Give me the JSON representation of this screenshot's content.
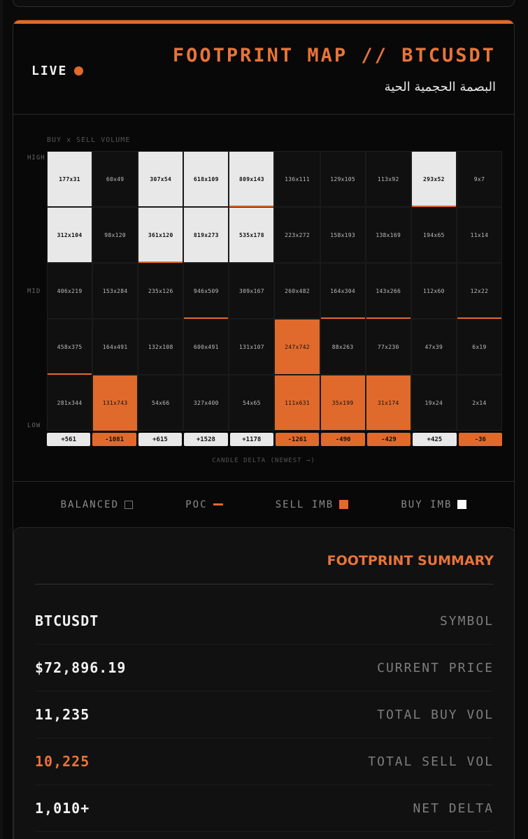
{
  "header": {
    "live_label": "LIVE",
    "title": "FOOTPRINT MAP // BTCUSDT",
    "subtitle": "البصمة الحجمية الحية"
  },
  "chart": {
    "caption": "BUY x SELL VOLUME",
    "y_labels": {
      "high": "HIGH",
      "mid": "MID",
      "low": "LOW"
    },
    "x_caption": "CANDLE DELTA (NEWEST →)"
  },
  "chart_data": {
    "type": "heatmap",
    "rows": [
      "HIGH",
      "",
      "MID",
      "",
      "LOW"
    ],
    "cells": [
      [
        {
          "v": "177x31",
          "t": "buy"
        },
        {
          "v": "60x49",
          "t": "bal"
        },
        {
          "v": "307x54",
          "t": "buy"
        },
        {
          "v": "618x109",
          "t": "buy"
        },
        {
          "v": "809x143",
          "t": "buy",
          "poc": true
        },
        {
          "v": "136x111",
          "t": "bal"
        },
        {
          "v": "129x105",
          "t": "bal"
        },
        {
          "v": "113x92",
          "t": "bal"
        },
        {
          "v": "293x52",
          "t": "buy",
          "poc": true
        },
        {
          "v": "9x7",
          "t": "bal"
        }
      ],
      [
        {
          "v": "312x104",
          "t": "buy"
        },
        {
          "v": "98x120",
          "t": "bal"
        },
        {
          "v": "361x120",
          "t": "buy",
          "poc": true
        },
        {
          "v": "819x273",
          "t": "buy"
        },
        {
          "v": "535x178",
          "t": "buy"
        },
        {
          "v": "223x272",
          "t": "bal"
        },
        {
          "v": "158x193",
          "t": "bal"
        },
        {
          "v": "138x169",
          "t": "bal"
        },
        {
          "v": "194x65",
          "t": "bal"
        },
        {
          "v": "11x14",
          "t": "bal"
        }
      ],
      [
        {
          "v": "406x219",
          "t": "bal"
        },
        {
          "v": "153x284",
          "t": "bal"
        },
        {
          "v": "235x126",
          "t": "bal"
        },
        {
          "v": "946x509",
          "t": "bal",
          "poc": true
        },
        {
          "v": "309x167",
          "t": "bal"
        },
        {
          "v": "260x482",
          "t": "bal"
        },
        {
          "v": "164x304",
          "t": "bal",
          "poc": true
        },
        {
          "v": "143x266",
          "t": "bal",
          "poc": true
        },
        {
          "v": "112x60",
          "t": "bal"
        },
        {
          "v": "12x22",
          "t": "bal",
          "poc": true
        }
      ],
      [
        {
          "v": "458x375",
          "t": "bal",
          "poc": true
        },
        {
          "v": "164x491",
          "t": "bal"
        },
        {
          "v": "132x108",
          "t": "bal"
        },
        {
          "v": "600x491",
          "t": "bal"
        },
        {
          "v": "131x107",
          "t": "bal"
        },
        {
          "v": "247x742",
          "t": "sell"
        },
        {
          "v": "88x263",
          "t": "bal"
        },
        {
          "v": "77x230",
          "t": "bal"
        },
        {
          "v": "47x39",
          "t": "bal"
        },
        {
          "v": "6x19",
          "t": "bal"
        }
      ],
      [
        {
          "v": "281x344",
          "t": "bal"
        },
        {
          "v": "131x743",
          "t": "sell",
          "poc": true
        },
        {
          "v": "54x66",
          "t": "bal"
        },
        {
          "v": "327x400",
          "t": "bal"
        },
        {
          "v": "54x65",
          "t": "bal"
        },
        {
          "v": "111x631",
          "t": "sell"
        },
        {
          "v": "35x199",
          "t": "sell"
        },
        {
          "v": "31x174",
          "t": "sell"
        },
        {
          "v": "19x24",
          "t": "bal"
        },
        {
          "v": "2x14",
          "t": "bal"
        }
      ]
    ],
    "deltas": [
      "+561",
      "-1081",
      "+615",
      "+1528",
      "+1178",
      "-1261",
      "-490",
      "-429",
      "+425",
      "-36"
    ]
  },
  "legend": {
    "balanced": "BALANCED",
    "poc": "POC",
    "sell_imb": "SELL IMB",
    "buy_imb": "BUY IMB"
  },
  "colors": {
    "accent": "#e06a2b",
    "buy": "#e8e8e8",
    "background": "#0a0a0a"
  },
  "summary": {
    "title": "FOOTPRINT SUMMARY",
    "rows": [
      {
        "value": "BTCUSDT",
        "label": "SYMBOL"
      },
      {
        "value": "$72,896.19",
        "label": "CURRENT PRICE"
      },
      {
        "value": "11,235",
        "label": "TOTAL BUY VOL"
      },
      {
        "value": "10,225",
        "label": "TOTAL SELL VOL"
      },
      {
        "value": "1,010+",
        "label": "NET DELTA"
      }
    ]
  }
}
